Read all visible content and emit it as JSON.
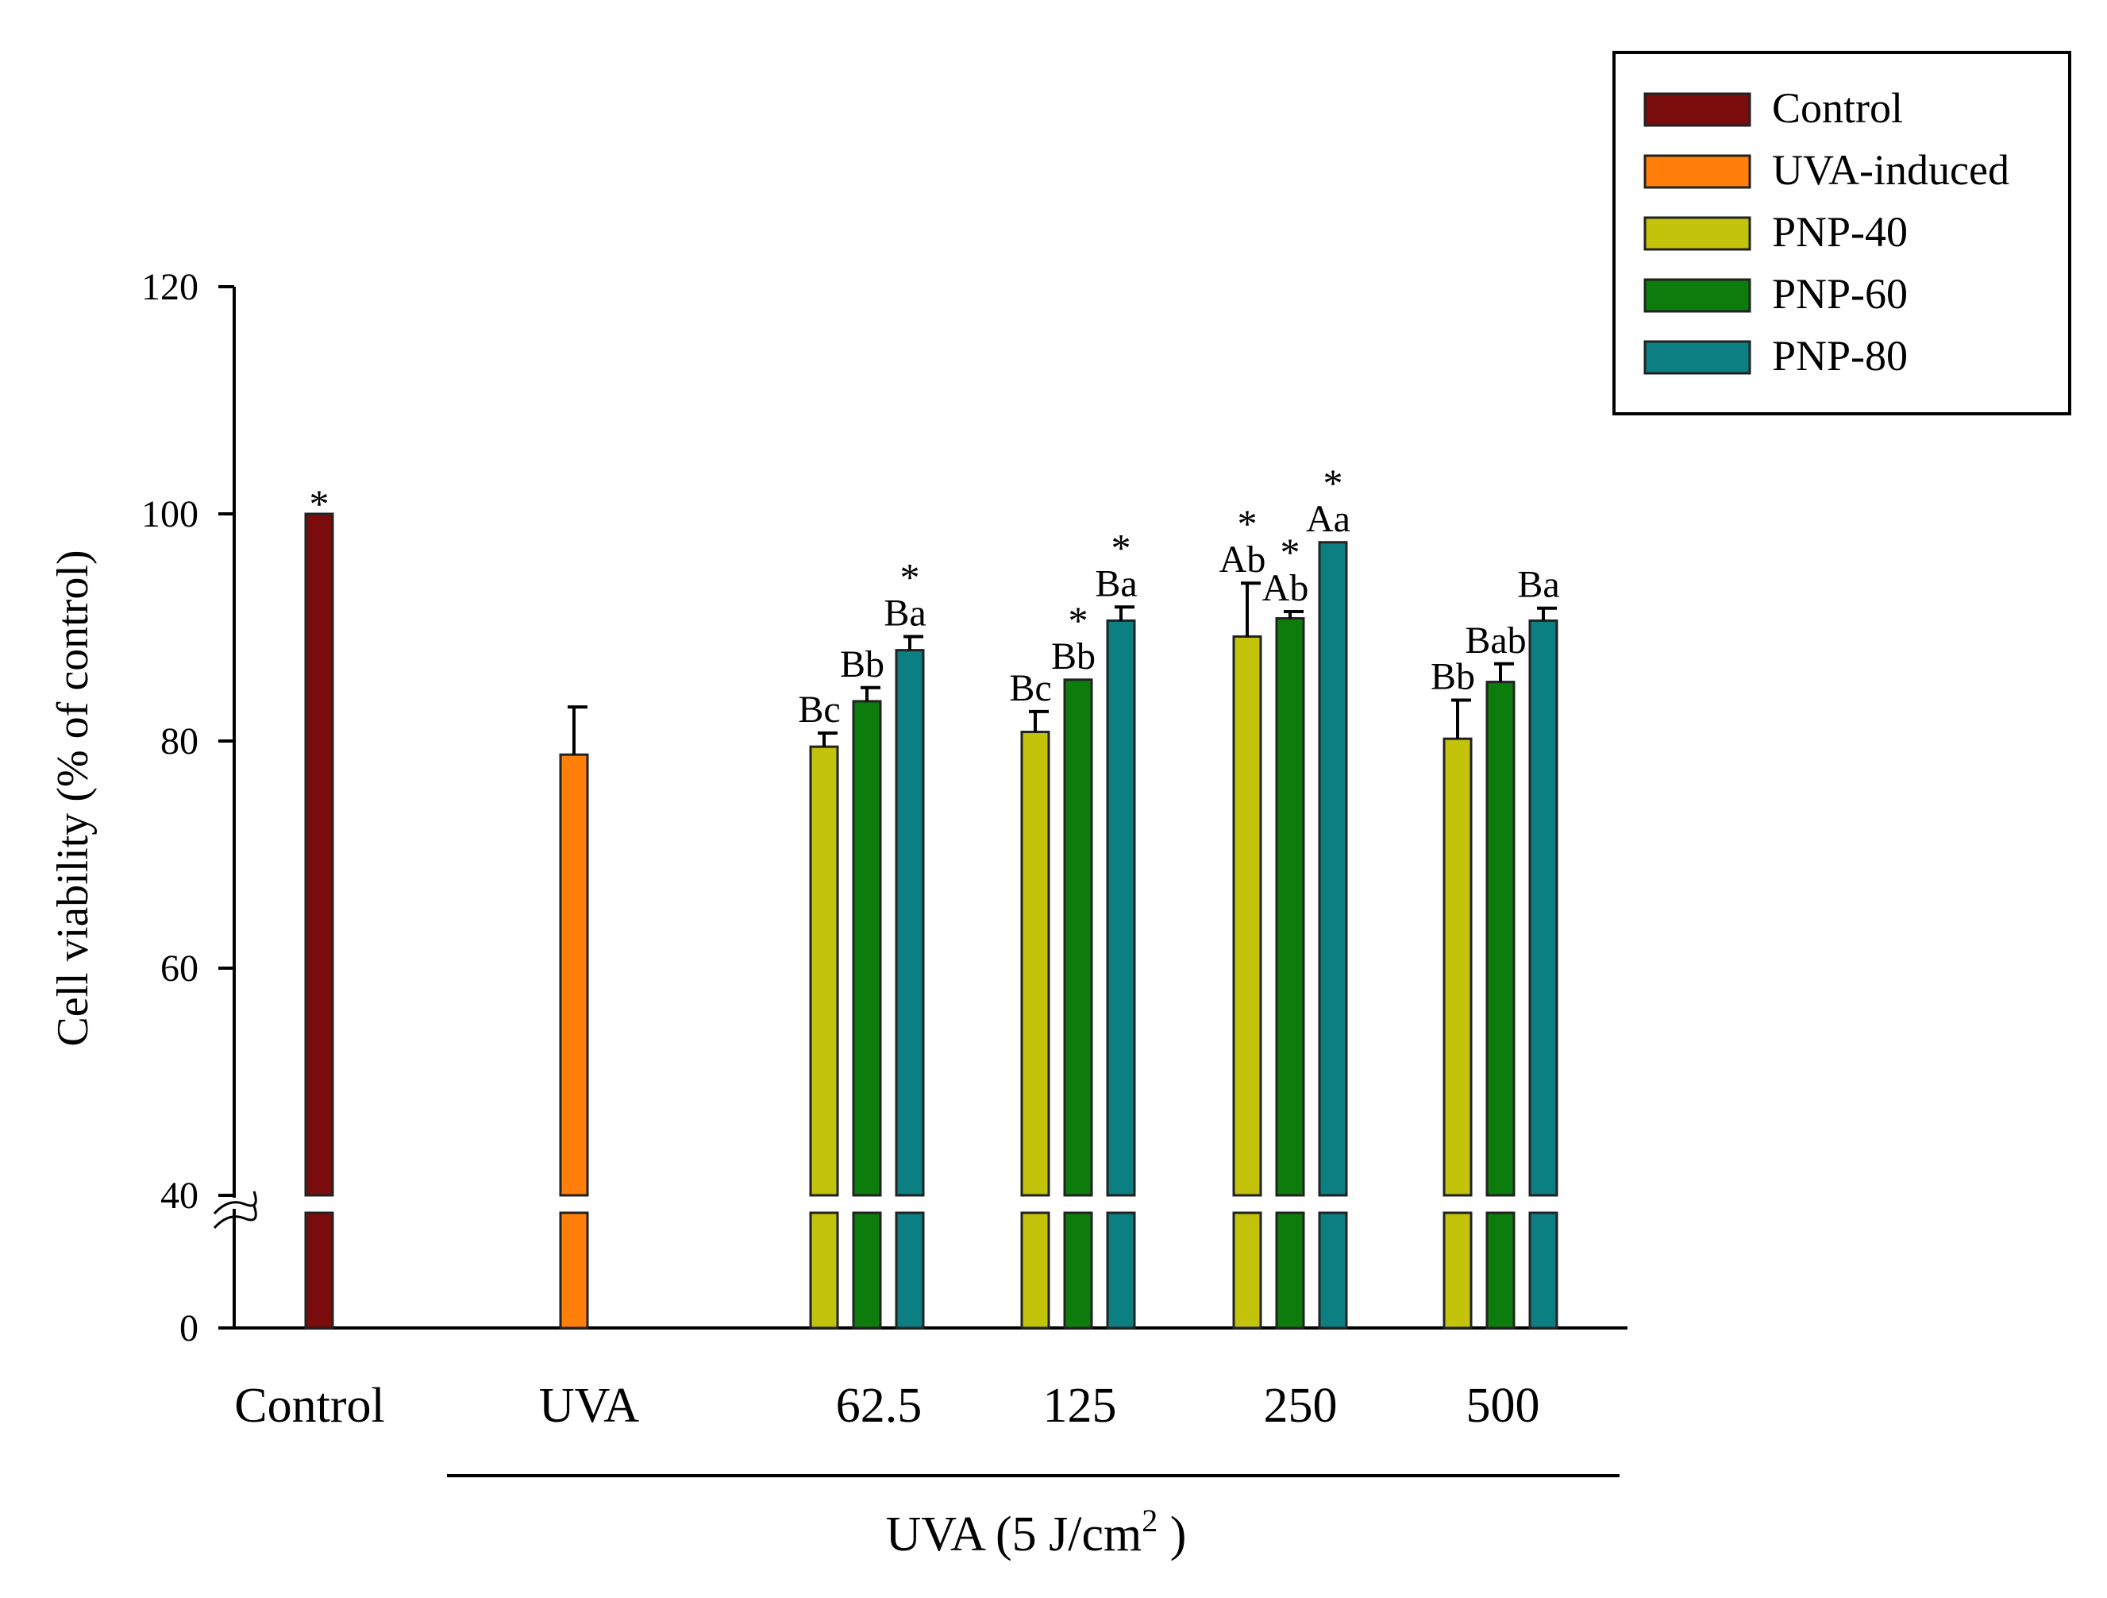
{
  "chart_data": {
    "type": "bar",
    "title": "",
    "ylabel": "Cell viability (% of control)",
    "xlabel": "UVA (5 J/cm",
    "xlabel_sup": "2",
    "xlabel_end": " )",
    "ylim": [
      0,
      120
    ],
    "axis_break": [
      40,
      40
    ],
    "yticks": [
      0,
      40,
      60,
      80,
      100,
      120
    ],
    "colors": {
      "Control": "#7b0c0c",
      "UVA-induced": "#ff7f0a",
      "PNP-40": "#c3c30b",
      "PNP-60": "#0c7c0c",
      "PNP-80": "#0b7f82"
    },
    "legend": [
      "Control",
      "UVA-induced",
      "PNP-40",
      "PNP-60",
      "PNP-80"
    ],
    "groups": [
      {
        "label": "Control",
        "bars": [
          {
            "series": "Control",
            "value": 100,
            "err": 0,
            "letters": "",
            "star": true
          }
        ]
      },
      {
        "label": "UVA",
        "bars": [
          {
            "series": "UVA-induced",
            "value": 78.8,
            "err": 4.2,
            "letters": "",
            "star": false
          }
        ]
      },
      {
        "label": "62.5",
        "bars": [
          {
            "series": "PNP-40",
            "value": 79.5,
            "err": 1.2,
            "letters": "Bc",
            "star": false
          },
          {
            "series": "PNP-60",
            "value": 83.5,
            "err": 1.2,
            "letters": "Bb",
            "star": false
          },
          {
            "series": "PNP-80",
            "value": 88.0,
            "err": 1.2,
            "letters": "Ba",
            "star": true
          }
        ]
      },
      {
        "label": "125",
        "bars": [
          {
            "series": "PNP-40",
            "value": 80.8,
            "err": 1.8,
            "letters": "Bc",
            "star": false
          },
          {
            "series": "PNP-60",
            "value": 85.4,
            "err": 0,
            "letters": "Bb",
            "star": true
          },
          {
            "series": "PNP-80",
            "value": 90.6,
            "err": 1.2,
            "letters": "Ba",
            "star": true
          }
        ]
      },
      {
        "label": "250",
        "bars": [
          {
            "series": "PNP-40",
            "value": 89.2,
            "err": 4.7,
            "letters": "Ab",
            "star": true
          },
          {
            "series": "PNP-60",
            "value": 90.8,
            "err": 0.6,
            "letters": "Ab",
            "star": true
          },
          {
            "series": "PNP-80",
            "value": 97.5,
            "err": 0,
            "letters": "Aa",
            "star": true
          }
        ]
      },
      {
        "label": "500",
        "bars": [
          {
            "series": "PNP-40",
            "value": 80.2,
            "err": 3.4,
            "letters": "Bb",
            "star": false
          },
          {
            "series": "PNP-60",
            "value": 85.2,
            "err": 1.6,
            "letters": "Bab",
            "star": false
          },
          {
            "series": "PNP-80",
            "value": 90.6,
            "err": 1.1,
            "letters": "Ba",
            "star": false
          }
        ]
      }
    ]
  }
}
